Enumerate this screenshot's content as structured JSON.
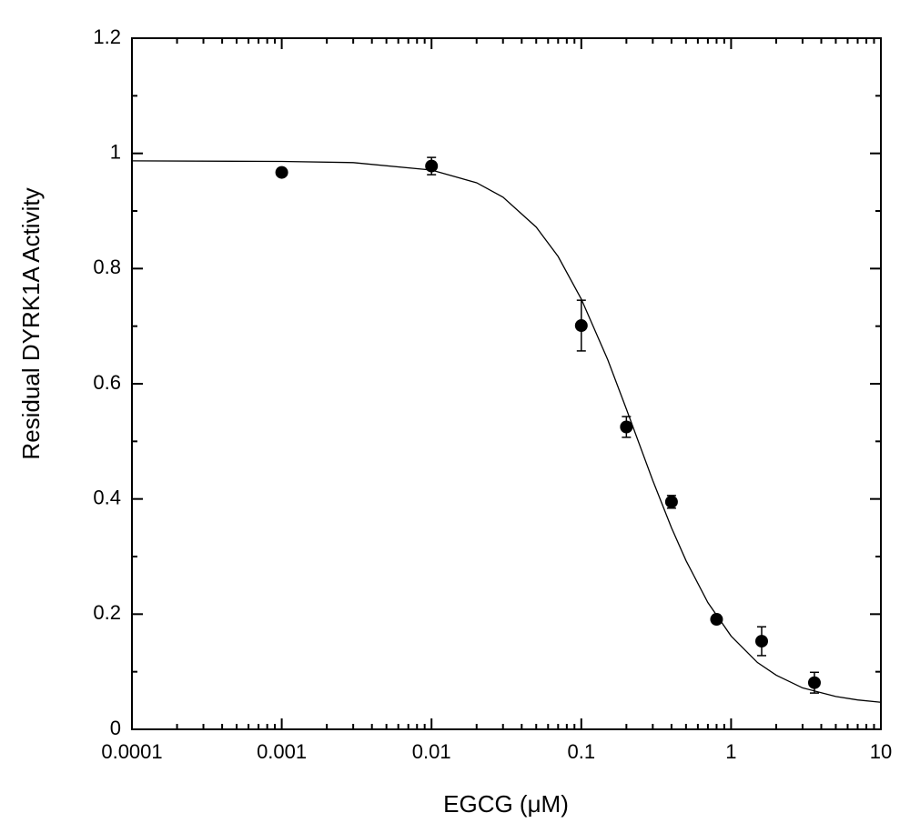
{
  "chart_data": {
    "type": "scatter",
    "x_label": "EGCG (μM)",
    "y_label": "Residual DYRK1A  Activity",
    "x": [
      0.001,
      0.01,
      0.1,
      0.2,
      0.4,
      0.8,
      1.6,
      3.6
    ],
    "values": [
      0.967,
      0.978,
      0.701,
      0.525,
      0.395,
      0.191,
      0.153,
      0.081
    ],
    "errors": [
      0.006,
      0.015,
      0.044,
      0.018,
      0.011,
      0.005,
      0.025,
      0.018
    ],
    "color": "#000000",
    "fit": {
      "type": "line",
      "color": "#000000",
      "x": [
        0.0001,
        0.001,
        0.003,
        0.01,
        0.02,
        0.03,
        0.05,
        0.07,
        0.1,
        0.15,
        0.2,
        0.3,
        0.4,
        0.5,
        0.7,
        1,
        1.5,
        2,
        3,
        5,
        7,
        10
      ],
      "values": [
        0.987,
        0.986,
        0.984,
        0.971,
        0.949,
        0.924,
        0.872,
        0.821,
        0.747,
        0.642,
        0.556,
        0.432,
        0.35,
        0.293,
        0.22,
        0.162,
        0.116,
        0.094,
        0.072,
        0.057,
        0.051,
        0.047
      ]
    },
    "xlog": true,
    "xlim": [
      0.0001,
      10
    ],
    "xticks": [
      0.0001,
      0.001,
      0.01,
      0.1,
      1,
      10
    ],
    "ylim": [
      0,
      1.2
    ],
    "yticks": [
      0,
      0.2,
      0.4,
      0.6,
      0.8,
      1,
      1.2
    ]
  }
}
